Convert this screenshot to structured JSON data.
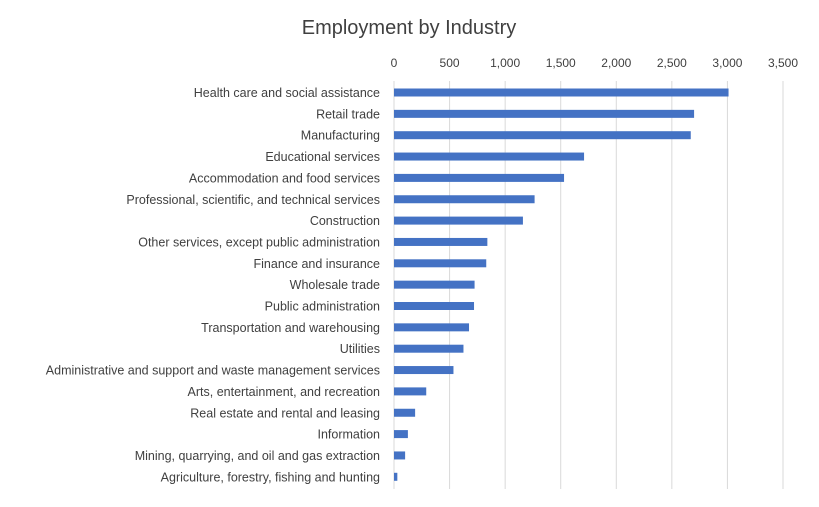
{
  "chart_data": {
    "type": "bar",
    "orientation": "horizontal",
    "title": "Employment  by Industry",
    "xlabel": "",
    "ylabel": "",
    "xlim": [
      0,
      3500
    ],
    "x_ticks": [
      "0",
      "500",
      "1,000",
      "1,500",
      "2,000",
      "2,500",
      "3,000",
      "3,500"
    ],
    "x_tick_values": [
      0,
      500,
      1000,
      1500,
      2000,
      2500,
      3000,
      3500
    ],
    "x_axis_position": "top",
    "grid": true,
    "bar_color": "#4472c4",
    "grid_color": "#d9d9d9",
    "categories": [
      "Health care and social assistance",
      "Retail trade",
      "Manufacturing",
      "Educational services",
      "Accommodation and food services",
      "Professional, scientific, and technical services",
      "Construction",
      "Other services, except public administration",
      "Finance and insurance",
      "Wholesale trade",
      "Public administration",
      "Transportation and warehousing",
      "Utilities",
      "Administrative and support and waste management services",
      "Arts, entertainment, and recreation",
      "Real estate and rental and leasing",
      "Information",
      "Mining, quarrying, and oil and gas extraction",
      "Agriculture, forestry, fishing and hunting"
    ],
    "values": [
      3010,
      2700,
      2670,
      1710,
      1530,
      1265,
      1160,
      840,
      830,
      725,
      720,
      675,
      625,
      535,
      290,
      190,
      125,
      100,
      30
    ]
  }
}
